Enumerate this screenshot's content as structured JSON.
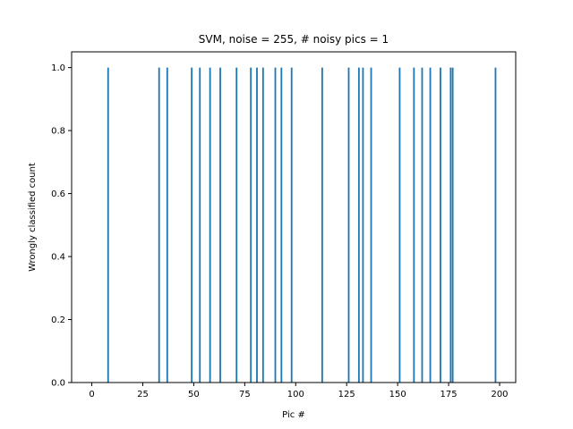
{
  "chart_data": {
    "type": "bar",
    "title": "SVM, noise = 255, # noisy pics = 1",
    "xlabel": "Pic #",
    "ylabel": "Wrongly classified count",
    "xlim": [
      -9.9,
      207.9
    ],
    "ylim": [
      0,
      1.05
    ],
    "xticks": [
      0,
      25,
      50,
      75,
      100,
      125,
      150,
      175,
      200
    ],
    "yticks": [
      0.0,
      0.2,
      0.4,
      0.6,
      0.8,
      1.0
    ],
    "xtick_labels": [
      "0",
      "25",
      "50",
      "75",
      "100",
      "125",
      "150",
      "175",
      "200"
    ],
    "ytick_labels": [
      "0.0",
      "0.2",
      "0.4",
      "0.6",
      "0.8",
      "1.0"
    ],
    "bar_color": "#1f77b4",
    "bar_width": 0.8,
    "x": [
      8,
      33,
      37,
      49,
      53,
      58,
      63,
      71,
      78,
      81,
      84,
      90,
      93,
      98,
      113,
      126,
      131,
      133,
      137,
      151,
      158,
      162,
      166,
      171,
      176,
      177,
      198
    ],
    "values": [
      1,
      1,
      1,
      1,
      1,
      1,
      1,
      1,
      1,
      1,
      1,
      1,
      1,
      1,
      1,
      1,
      1,
      1,
      1,
      1,
      1,
      1,
      1,
      1,
      1,
      1,
      1
    ],
    "grid": false,
    "legend": "none"
  }
}
